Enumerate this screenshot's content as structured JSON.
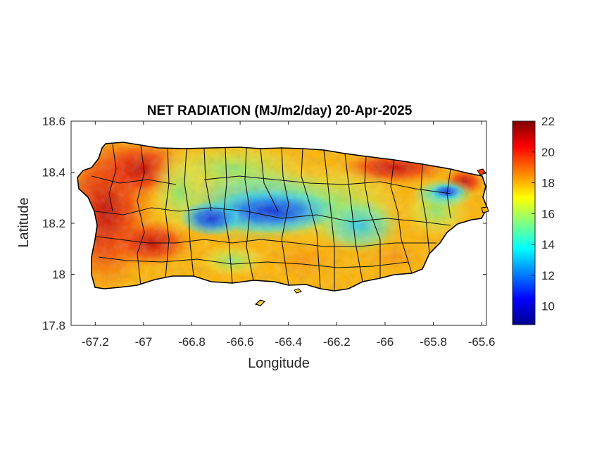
{
  "chart_data": {
    "type": "heatmap",
    "title": "NET RADIATION (MJ/m2/day) 20-Apr-2025",
    "xlabel": "Longitude",
    "ylabel": "Latitude",
    "xlim": [
      -67.3,
      -65.58
    ],
    "ylim": [
      17.8,
      18.6
    ],
    "x_ticks": [
      "-67.2",
      "-67",
      "-66.8",
      "-66.6",
      "-66.4",
      "-66.2",
      "-66",
      "-65.8",
      "-65.6"
    ],
    "y_ticks": [
      "17.8",
      "18",
      "18.2",
      "18.4",
      "18.6"
    ],
    "colorbar": {
      "colormap": "jet",
      "range": [
        8.8,
        22
      ],
      "ticks": [
        "10",
        "12",
        "14",
        "16",
        "18",
        "20",
        "22"
      ]
    },
    "grid": false,
    "outline_color": "#000000"
  }
}
